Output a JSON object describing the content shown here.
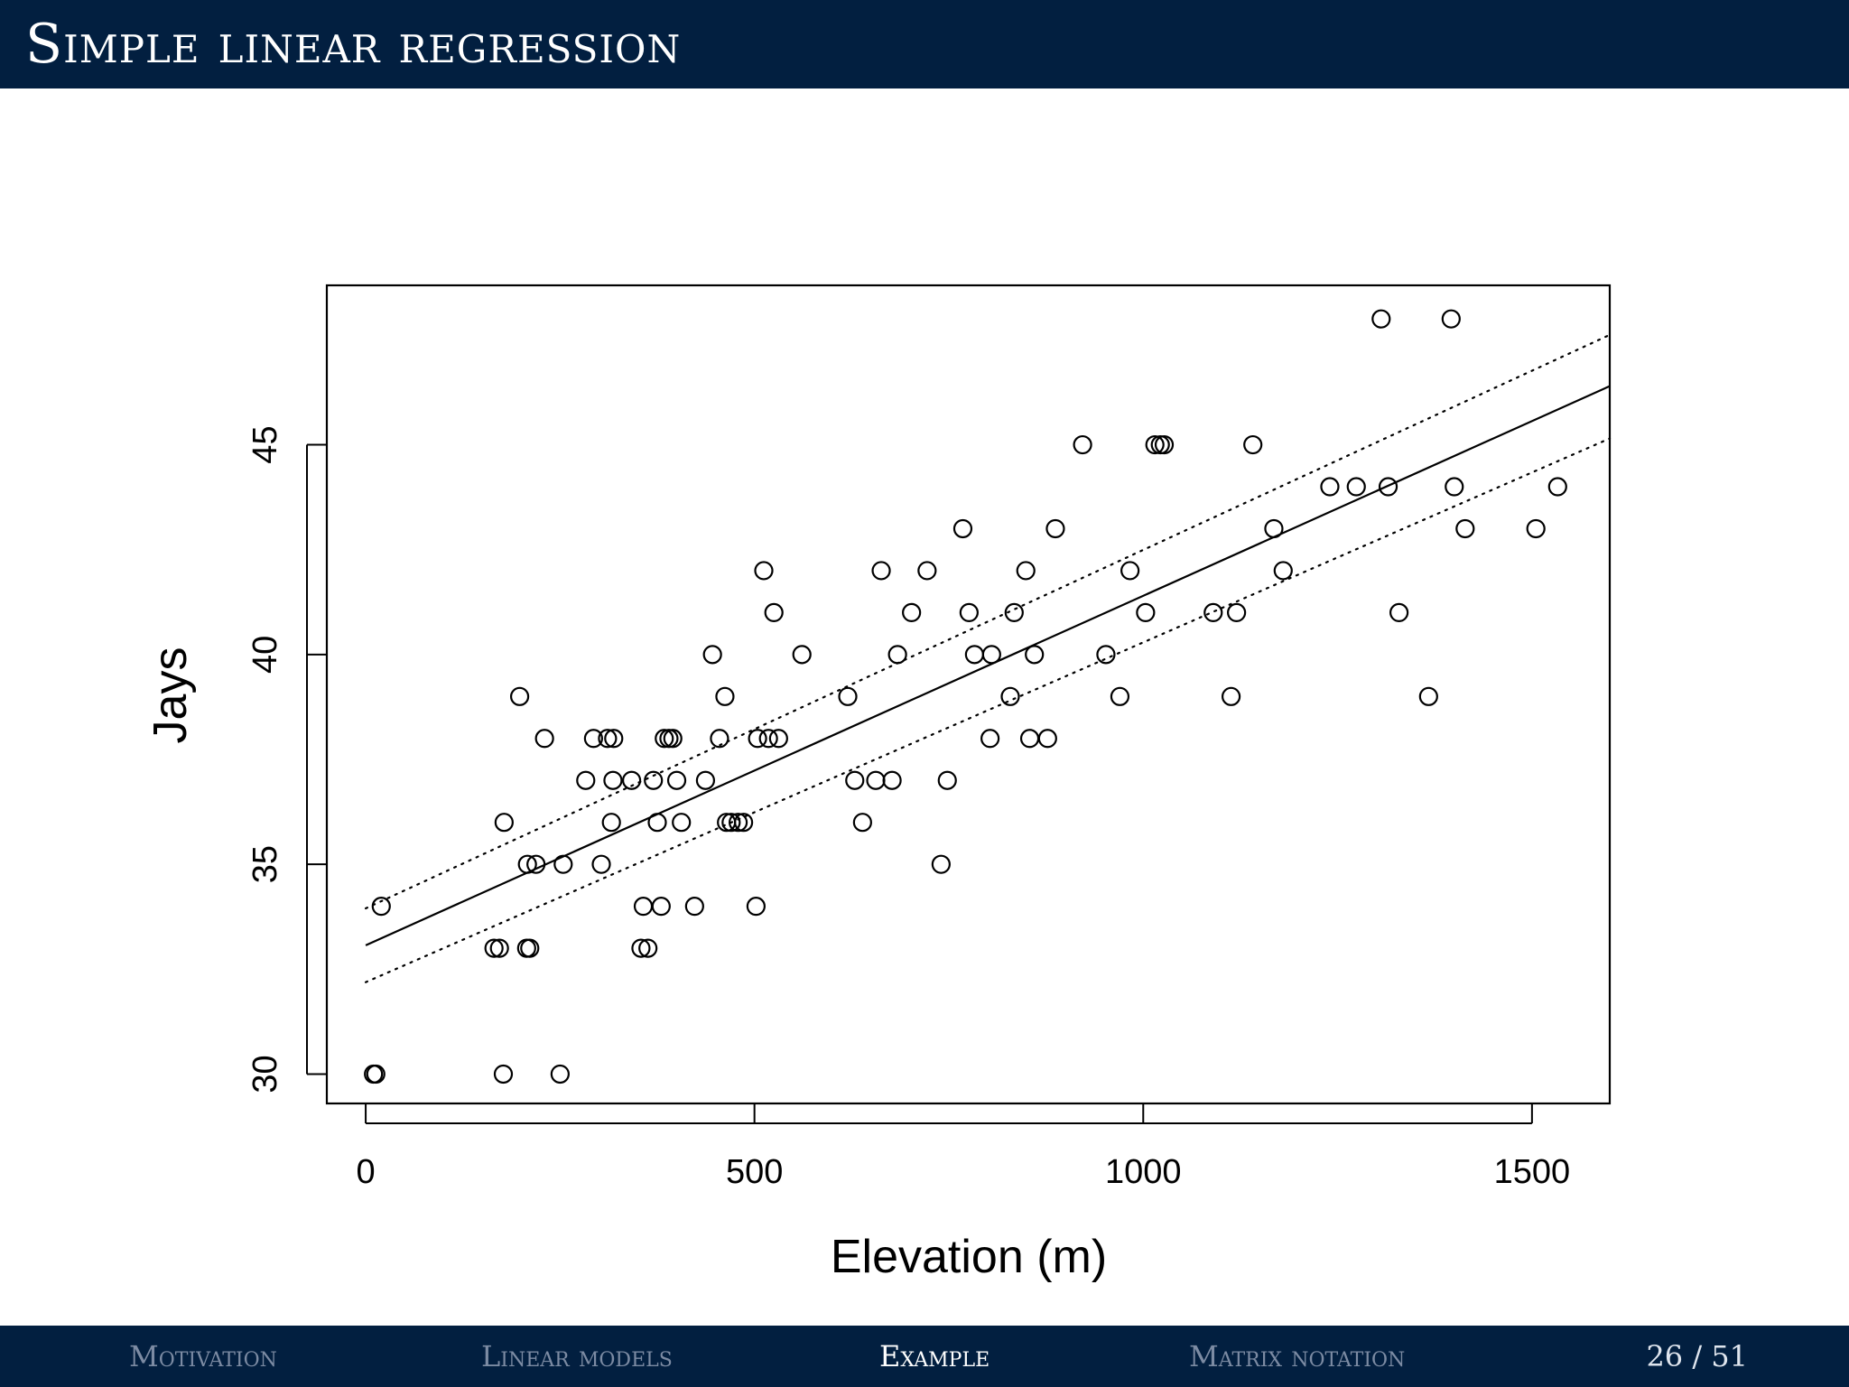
{
  "slide": {
    "title": "Simple linear regression"
  },
  "footer": {
    "nav": [
      {
        "label": "Motivation",
        "active": false
      },
      {
        "label": "Linear models",
        "active": false
      },
      {
        "label": "Example",
        "active": true
      },
      {
        "label": "Matrix notation",
        "active": false
      }
    ],
    "page_current": "26",
    "page_separator": "/",
    "page_total": "51"
  },
  "colors": {
    "header_bg": "#021f40",
    "nav_inactive": "#7c8ba3",
    "nav_active": "#ffffff"
  },
  "chart_data": {
    "type": "scatter",
    "title": "",
    "xlabel": "Elevation (m)",
    "ylabel": "Jays",
    "xlim": [
      -50,
      1600
    ],
    "ylim": [
      29.3,
      48.8
    ],
    "x_ticks": [
      0,
      500,
      1000,
      1500
    ],
    "y_ticks": [
      30,
      35,
      40,
      45
    ],
    "grid": false,
    "legend": "none",
    "points": [
      [
        10,
        30
      ],
      [
        13,
        30
      ],
      [
        20,
        34
      ],
      [
        177,
        30
      ],
      [
        250,
        30
      ],
      [
        165,
        33
      ],
      [
        172,
        33
      ],
      [
        207,
        33
      ],
      [
        211,
        33
      ],
      [
        178,
        36
      ],
      [
        198,
        39
      ],
      [
        208,
        35
      ],
      [
        219,
        35
      ],
      [
        230,
        38
      ],
      [
        254,
        35
      ],
      [
        283,
        37
      ],
      [
        293,
        38
      ],
      [
        303,
        35
      ],
      [
        311,
        38
      ],
      [
        319,
        38
      ],
      [
        316,
        36
      ],
      [
        318,
        37
      ],
      [
        342,
        37
      ],
      [
        354,
        33
      ],
      [
        357,
        34
      ],
      [
        363,
        33
      ],
      [
        370,
        37
      ],
      [
        375,
        36
      ],
      [
        380,
        34
      ],
      [
        384,
        38
      ],
      [
        390,
        38
      ],
      [
        395,
        38
      ],
      [
        400,
        37
      ],
      [
        406,
        36
      ],
      [
        423,
        34
      ],
      [
        437,
        37
      ],
      [
        446,
        40
      ],
      [
        455,
        38
      ],
      [
        462,
        39
      ],
      [
        464,
        36
      ],
      [
        470,
        36
      ],
      [
        479,
        36
      ],
      [
        486,
        36
      ],
      [
        502,
        34
      ],
      [
        504,
        38
      ],
      [
        512,
        42
      ],
      [
        518,
        38
      ],
      [
        525,
        41
      ],
      [
        531,
        38
      ],
      [
        561,
        40
      ],
      [
        620,
        39
      ],
      [
        629,
        37
      ],
      [
        639,
        36
      ],
      [
        656,
        37
      ],
      [
        663,
        42
      ],
      [
        677,
        37
      ],
      [
        684,
        40
      ],
      [
        702,
        41
      ],
      [
        722,
        42
      ],
      [
        740,
        35
      ],
      [
        748,
        37
      ],
      [
        768,
        43
      ],
      [
        776,
        41
      ],
      [
        783,
        40
      ],
      [
        803,
        38
      ],
      [
        805,
        40
      ],
      [
        829,
        39
      ],
      [
        834,
        41
      ],
      [
        849,
        42
      ],
      [
        854,
        38
      ],
      [
        860,
        40
      ],
      [
        877,
        38
      ],
      [
        887,
        43
      ],
      [
        922,
        45
      ],
      [
        952,
        40
      ],
      [
        970,
        39
      ],
      [
        983,
        42
      ],
      [
        1003,
        41
      ],
      [
        1015,
        45
      ],
      [
        1022,
        45
      ],
      [
        1027,
        45
      ],
      [
        1090,
        41
      ],
      [
        1113,
        39
      ],
      [
        1120,
        41
      ],
      [
        1141,
        45
      ],
      [
        1168,
        43
      ],
      [
        1180,
        42
      ],
      [
        1240,
        44
      ],
      [
        1274,
        44
      ],
      [
        1306,
        48
      ],
      [
        1315,
        44
      ],
      [
        1329,
        41
      ],
      [
        1367,
        39
      ],
      [
        1396,
        48
      ],
      [
        1400,
        44
      ],
      [
        1414,
        43
      ],
      [
        1505,
        43
      ],
      [
        1533,
        44
      ]
    ],
    "fit": {
      "intercept": 33.07,
      "slope": 0.00833,
      "x_range": [
        0,
        1600
      ]
    },
    "ci_upper": [
      [
        0,
        33.95
      ],
      [
        1600,
        47.62
      ]
    ],
    "ci_lower": [
      [
        0,
        32.19
      ],
      [
        1600,
        45.15
      ]
    ]
  }
}
